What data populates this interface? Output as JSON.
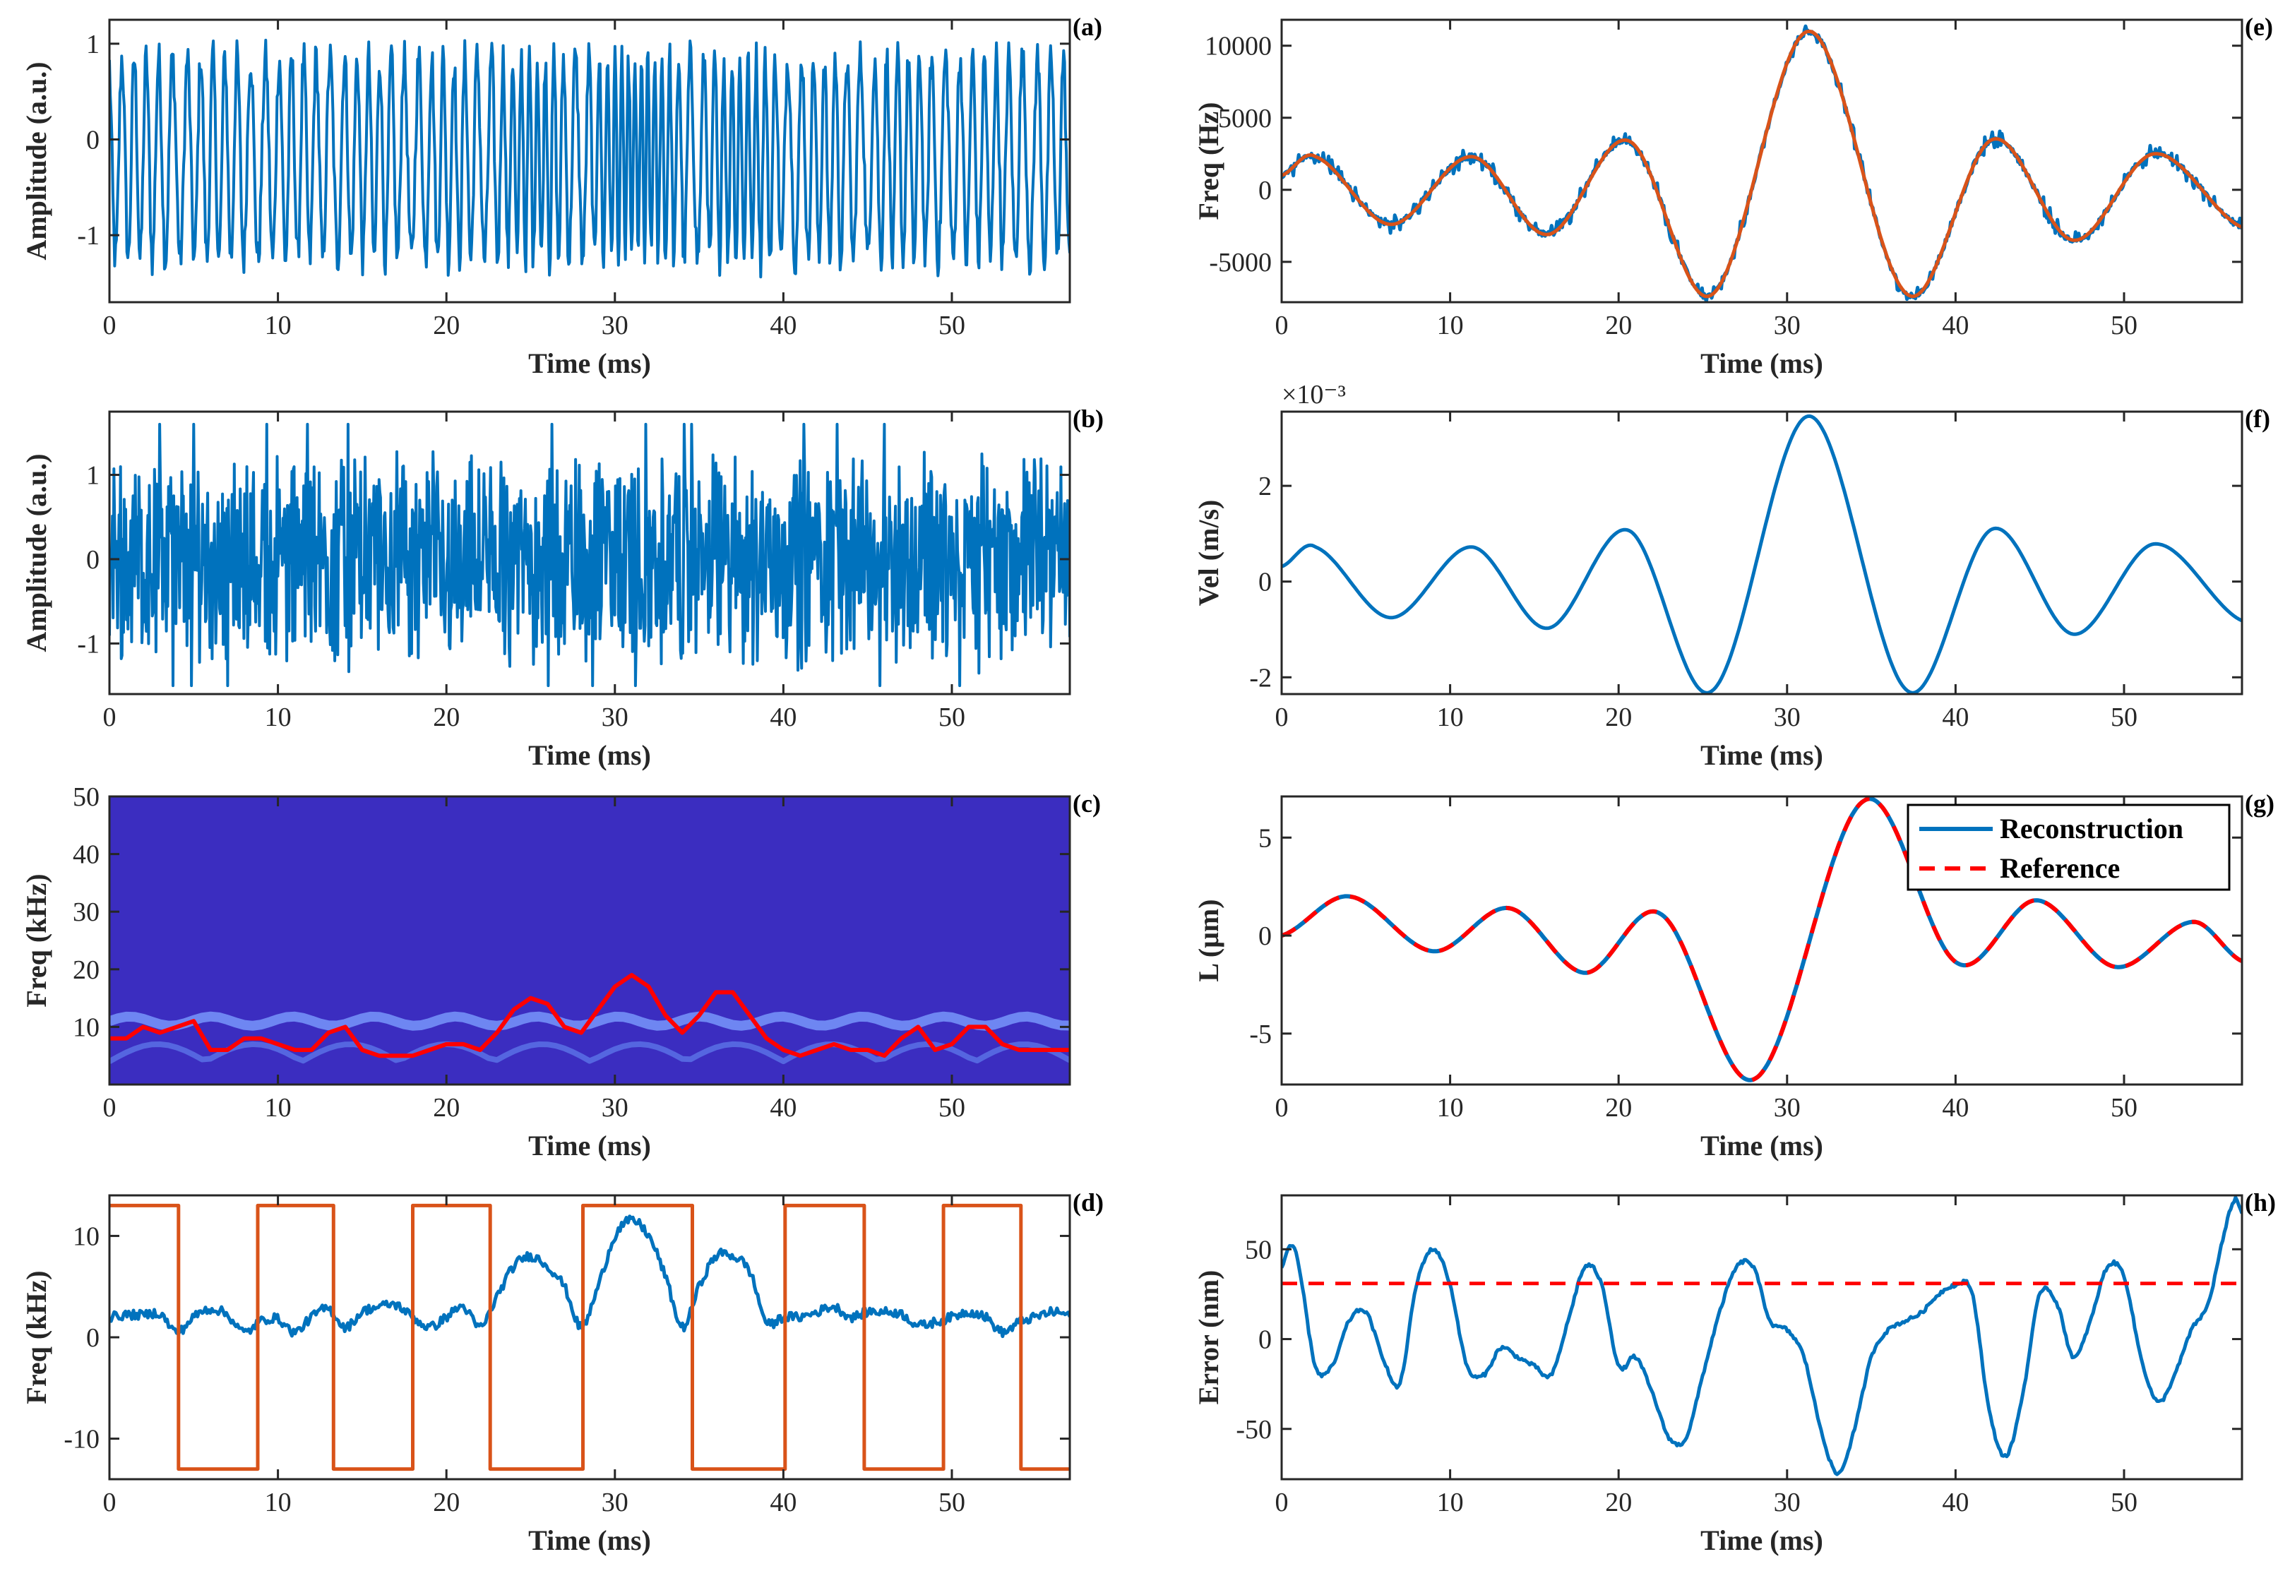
{
  "colors": {
    "blue": "#0072BD",
    "orange": "#D95319",
    "red": "#FF0000",
    "axis": "#262626",
    "spec_bg": "#3B2DC0",
    "spec_band": "#6E86F2"
  },
  "chart_data": [
    {
      "id": "a",
      "panel_label": "(a)",
      "type": "line",
      "xlabel": "Time (ms)",
      "ylabel": "Amplitude (a.u.)",
      "xlim": [
        0,
        57
      ],
      "ylim": [
        -1.7,
        1.25
      ],
      "xticks": [
        0,
        10,
        20,
        30,
        40,
        50
      ],
      "xtick_labels": [
        "0",
        "10",
        "20",
        "30",
        "40",
        "50"
      ],
      "yticks": [
        -1,
        0,
        1
      ],
      "ytick_labels": [
        "-1",
        "0",
        "1"
      ],
      "series": [
        {
          "name": "interference signal",
          "color": "#0072BD",
          "kind": "fringe",
          "n": 1100
        }
      ]
    },
    {
      "id": "b",
      "panel_label": "(b)",
      "type": "line",
      "xlabel": "Time (ms)",
      "ylabel": "Amplitude (a.u.)",
      "xlim": [
        0,
        57
      ],
      "ylim": [
        -1.6,
        1.75
      ],
      "xticks": [
        0,
        10,
        20,
        30,
        40,
        50
      ],
      "xtick_labels": [
        "0",
        "10",
        "20",
        "30",
        "40",
        "50"
      ],
      "yticks": [
        -1,
        0,
        1
      ],
      "ytick_labels": [
        "-1",
        "0",
        "1"
      ],
      "series": [
        {
          "name": "noisy signal",
          "color": "#0072BD",
          "kind": "noise",
          "n": 1300
        }
      ]
    },
    {
      "id": "c",
      "panel_label": "(c)",
      "type": "heatmap",
      "xlabel": "Time (ms)",
      "ylabel": "Freq (kHz)",
      "xlim": [
        0,
        57
      ],
      "ylim": [
        0,
        50
      ],
      "xticks": [
        0,
        10,
        20,
        30,
        40,
        50
      ],
      "xtick_labels": [
        "0",
        "10",
        "20",
        "30",
        "40",
        "50"
      ],
      "yticks": [
        10,
        20,
        30,
        40,
        50
      ],
      "ytick_labels": [
        "10",
        "20",
        "30",
        "40",
        "50"
      ],
      "series": [
        {
          "name": "ridge (extracted frequency)",
          "color": "#FF0000",
          "x": [
            0,
            1,
            2,
            3,
            4,
            5,
            6,
            7,
            8,
            9,
            10,
            11,
            12,
            13,
            14,
            15,
            16,
            17,
            18,
            19,
            20,
            21,
            22,
            23,
            24,
            25,
            26,
            27,
            28,
            29,
            30,
            31,
            32,
            33,
            34,
            35,
            36,
            37,
            38,
            39,
            40,
            41,
            42,
            43,
            44,
            45,
            46,
            47,
            48,
            49,
            50,
            51,
            52,
            53,
            54,
            55,
            56,
            57
          ],
          "y": [
            8,
            8,
            10,
            9,
            10,
            11,
            6,
            6,
            8,
            8,
            7,
            6,
            6,
            9,
            10,
            6,
            5,
            5,
            5,
            6,
            7,
            7,
            6,
            9,
            13,
            15,
            14,
            10,
            9,
            13,
            17,
            19,
            17,
            12,
            9,
            12,
            16,
            16,
            12,
            8,
            6,
            5,
            6,
            7,
            6,
            6,
            5,
            8,
            10,
            6,
            7,
            10,
            10,
            7,
            6,
            6,
            6,
            6
          ]
        }
      ]
    },
    {
      "id": "d",
      "panel_label": "(d)",
      "type": "line",
      "xlabel": "Time (ms)",
      "ylabel": "Freq (kHz)",
      "xlim": [
        0,
        57
      ],
      "ylim": [
        -14,
        14
      ],
      "xticks": [
        0,
        10,
        20,
        30,
        40,
        50
      ],
      "xtick_labels": [
        "0",
        "10",
        "20",
        "30",
        "40",
        "50"
      ],
      "yticks": [
        -10,
        0,
        10
      ],
      "ytick_labels": [
        "-10",
        "0",
        "10"
      ],
      "series": [
        {
          "name": "instantaneous frequency",
          "color": "#0072BD",
          "x": [
            0,
            1,
            2,
            3,
            4,
            5,
            6,
            7,
            8,
            9,
            10,
            11,
            12,
            13,
            14,
            15,
            16,
            17,
            18,
            19,
            20,
            21,
            22,
            23,
            24,
            25,
            26,
            27,
            28,
            29,
            30,
            31,
            32,
            33,
            34,
            35,
            36,
            37,
            38,
            39,
            40,
            41,
            42,
            43,
            44,
            45,
            46,
            47,
            48,
            49,
            50,
            51,
            52,
            53,
            54,
            55,
            56,
            57
          ],
          "y": [
            2,
            2.2,
            2.2,
            2.3,
            0.5,
            2,
            2.8,
            2.2,
            0.5,
            1.6,
            1.8,
            0.5,
            2,
            2.8,
            1,
            2.5,
            3,
            3.2,
            2,
            1,
            2,
            3,
            1,
            4,
            7,
            8,
            7,
            5,
            1,
            5,
            10,
            11.5,
            10,
            6,
            1,
            5,
            8,
            8,
            6.5,
            1.5,
            2,
            2,
            2.5,
            3,
            2,
            2.5,
            2.5,
            2.3,
            1.2,
            1.5,
            2,
            2.5,
            2,
            0.5,
            1.5,
            2,
            2.5,
            2.2
          ]
        },
        {
          "name": "direction",
          "color": "#D95319",
          "x": [
            0,
            4.1,
            4.1,
            8.8,
            8.8,
            13.3,
            13.3,
            18.0,
            18.0,
            22.6,
            22.6,
            28.1,
            28.1,
            34.6,
            34.6,
            40.1,
            40.1,
            44.8,
            44.8,
            49.5,
            49.5,
            54.1,
            54.1,
            57
          ],
          "y": [
            13,
            13,
            -13,
            -13,
            13,
            13,
            -13,
            -13,
            13,
            13,
            -13,
            -13,
            13,
            13,
            -13,
            -13,
            13,
            13,
            -13,
            -13,
            13,
            13,
            -13,
            -13
          ]
        }
      ]
    },
    {
      "id": "e",
      "panel_label": "(e)",
      "type": "line",
      "xlabel": "Time (ms)",
      "ylabel": "Freq (Hz)",
      "xlim": [
        0,
        57
      ],
      "ylim": [
        -7800,
        11800
      ],
      "xticks": [
        0,
        10,
        20,
        30,
        40,
        50
      ],
      "xtick_labels": [
        "0",
        "10",
        "20",
        "30",
        "40",
        "50"
      ],
      "yticks": [
        -5000,
        0,
        5000,
        10000
      ],
      "ytick_labels": [
        "-5000",
        "0",
        "5000",
        "10000"
      ],
      "series": [
        {
          "name": "measured (noisy)",
          "color": "#0072BD",
          "base": "e",
          "scale": 1,
          "noise": 700
        },
        {
          "name": "fit",
          "color": "#D95319",
          "base": "e",
          "scale": 1,
          "noise": 0
        }
      ],
      "control_points": {
        "x": [
          0,
          2,
          6.5,
          11.3,
          15.8,
          20.6,
          25.5,
          31.3,
          37.2,
          42.2,
          47.0,
          51.8,
          57
        ],
        "y": [
          1000,
          2300,
          -2400,
          2300,
          -3100,
          3400,
          -7300,
          11000,
          -7300,
          3500,
          -3500,
          2500,
          -2600
        ]
      }
    },
    {
      "id": "f",
      "panel_label": "(f)",
      "type": "line",
      "xlabel": "Time (ms)",
      "ylabel": "Vel (m/s)",
      "exponent_label": "×10⁻³",
      "xlim": [
        0,
        57
      ],
      "ylim": [
        -2.35,
        3.55
      ],
      "xticks": [
        0,
        10,
        20,
        30,
        40,
        50
      ],
      "xtick_labels": [
        "0",
        "10",
        "20",
        "30",
        "40",
        "50"
      ],
      "yticks": [
        -2,
        0,
        2
      ],
      "ytick_labels": [
        "-2",
        "0",
        "2"
      ],
      "series": [
        {
          "name": "velocity",
          "color": "#0072BD",
          "base": "e",
          "scale": 0.0003142,
          "noise": 0
        }
      ]
    },
    {
      "id": "g",
      "panel_label": "(g)",
      "type": "line",
      "xlabel": "Time (ms)",
      "ylabel": "L (μm)",
      "xlim": [
        0,
        57
      ],
      "ylim": [
        -7.6,
        7.1
      ],
      "xticks": [
        0,
        10,
        20,
        30,
        40,
        50
      ],
      "xtick_labels": [
        "0",
        "10",
        "20",
        "30",
        "40",
        "50"
      ],
      "yticks": [
        -5,
        0,
        5
      ],
      "ytick_labels": [
        "-5",
        "0",
        "5"
      ],
      "legend": {
        "position": "top-right",
        "entries": [
          "Reconstruction",
          "Reference"
        ]
      },
      "series": [
        {
          "name": "Reconstruction",
          "color": "#0072BD",
          "style": "solid"
        },
        {
          "name": "Reference",
          "color": "#FF0000",
          "style": "dashed"
        }
      ],
      "control_points": {
        "x": [
          0,
          4,
          9,
          13.5,
          18,
          22.5,
          28.1,
          34.6,
          40.1,
          44.8,
          49.5,
          54.1,
          57
        ],
        "y": [
          0,
          2,
          -0.8,
          1.4,
          -1.9,
          1.1,
          -7.3,
          6.9,
          -1.4,
          1.8,
          -1.6,
          0.7,
          -1.3
        ]
      }
    },
    {
      "id": "h",
      "panel_label": "(h)",
      "type": "line",
      "xlabel": "Time (ms)",
      "ylabel": "Error (nm)",
      "xlim": [
        0,
        57
      ],
      "ylim": [
        -78,
        80
      ],
      "xticks": [
        0,
        10,
        20,
        30,
        40,
        50
      ],
      "xtick_labels": [
        "0",
        "10",
        "20",
        "30",
        "40",
        "50"
      ],
      "yticks": [
        -50,
        0,
        50
      ],
      "ytick_labels": [
        "-50",
        "0",
        "50"
      ],
      "series": [
        {
          "name": "error",
          "color": "#0072BD",
          "x": [
            0,
            0.5,
            1,
            2,
            3,
            4,
            5,
            6,
            7,
            8,
            9,
            10,
            11,
            12,
            13,
            14,
            15,
            16,
            17,
            18,
            19,
            20,
            21,
            22,
            23,
            24,
            25,
            26,
            27,
            28,
            29,
            30,
            31,
            32,
            33,
            34,
            35,
            36,
            37,
            38,
            39,
            40,
            41,
            42,
            43,
            44,
            45,
            46,
            47,
            48,
            49,
            50,
            51,
            52,
            53,
            54,
            55,
            56,
            56.6,
            57
          ],
          "y": [
            40,
            52,
            40,
            -15,
            -15,
            10,
            15,
            -10,
            -25,
            30,
            50,
            30,
            -15,
            -20,
            -5,
            -10,
            -15,
            -20,
            10,
            40,
            30,
            -15,
            -10,
            -30,
            -55,
            -55,
            -20,
            15,
            40,
            40,
            10,
            5,
            -10,
            -50,
            -75,
            -50,
            -10,
            5,
            10,
            15,
            25,
            30,
            25,
            -40,
            -65,
            -30,
            25,
            20,
            -10,
            10,
            40,
            35,
            -10,
            -35,
            -20,
            5,
            20,
            60,
            78,
            70
          ]
        },
        {
          "name": "threshold",
          "color": "#FF0000",
          "style": "dashed",
          "x": [
            0,
            57
          ],
          "y": [
            31,
            31
          ]
        }
      ]
    }
  ]
}
